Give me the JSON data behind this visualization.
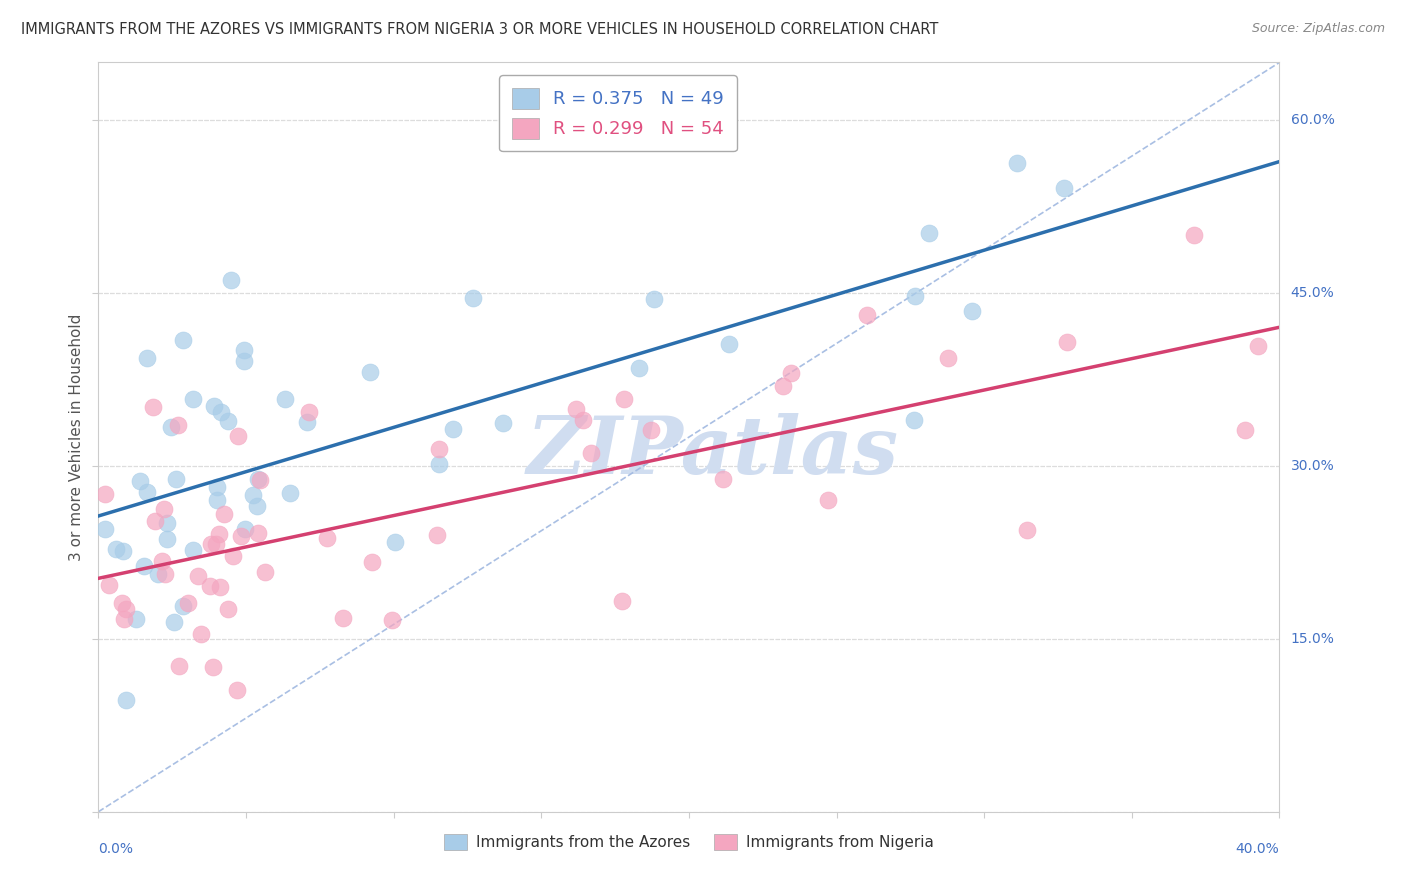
{
  "title": "IMMIGRANTS FROM THE AZORES VS IMMIGRANTS FROM NIGERIA 3 OR MORE VEHICLES IN HOUSEHOLD CORRELATION CHART",
  "source": "Source: ZipAtlas.com",
  "ylabel": "3 or more Vehicles in Household",
  "right_yticks": [
    "15.0%",
    "30.0%",
    "45.0%",
    "60.0%"
  ],
  "right_ytick_vals": [
    0.15,
    0.3,
    0.45,
    0.6
  ],
  "xlim": [
    0.0,
    0.4
  ],
  "ylim": [
    0.0,
    0.65
  ],
  "azores_R": 0.375,
  "azores_N": 49,
  "nigeria_R": 0.299,
  "nigeria_N": 54,
  "azores_color": "#a8cce8",
  "nigeria_color": "#f4a6c0",
  "azores_line_color": "#2c6fad",
  "nigeria_line_color": "#d44070",
  "diagonal_color": "#a0b8e0",
  "watermark_color": "#d0ddf0",
  "legend_box_color": "#e8f0fa",
  "legend_text_color_az": "#4472c4",
  "legend_text_color_ng": "#e05080",
  "bottom_legend_text_color": "#333333"
}
